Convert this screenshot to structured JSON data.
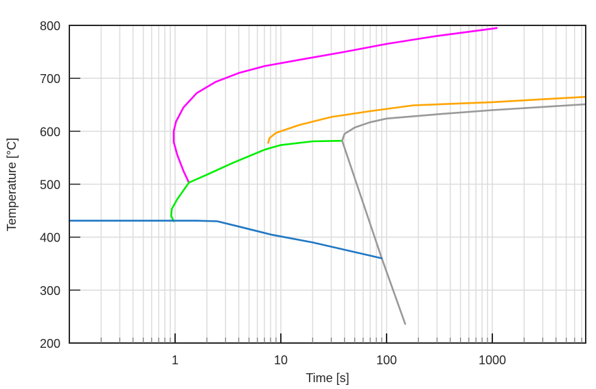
{
  "chart_data": {
    "type": "line",
    "title": "",
    "xlabel": "Time [s]",
    "ylabel": "Temperature [°C]",
    "xscale": "log",
    "xlim": [
      0.1,
      7600
    ],
    "ylim": [
      200,
      800
    ],
    "grid": true,
    "legend": "none",
    "x_tick_labels": [
      "1",
      "10",
      "100",
      "1000"
    ],
    "x_tick_values": [
      1,
      10,
      100,
      1000
    ],
    "y_tick_labels": [
      "200",
      "300",
      "400",
      "500",
      "600",
      "700",
      "800"
    ],
    "y_tick_values": [
      200,
      300,
      400,
      500,
      600,
      700,
      800
    ],
    "series": [
      {
        "name": "magenta",
        "color": "#ff00ff",
        "points": [
          [
            1.35,
            503
          ],
          [
            1.2,
            525
          ],
          [
            1.05,
            555
          ],
          [
            0.97,
            580
          ],
          [
            0.97,
            600
          ],
          [
            1.02,
            618
          ],
          [
            1.2,
            645
          ],
          [
            1.6,
            672
          ],
          [
            2.4,
            693
          ],
          [
            4,
            710
          ],
          [
            7,
            723
          ],
          [
            15,
            735
          ],
          [
            40,
            750
          ],
          [
            100,
            765
          ],
          [
            300,
            780
          ],
          [
            1100,
            795
          ]
        ]
      },
      {
        "name": "orange",
        "color": "#ffa500",
        "points": [
          [
            7.6,
            578
          ],
          [
            7.8,
            587
          ],
          [
            9,
            597
          ],
          [
            15,
            612
          ],
          [
            30,
            627
          ],
          [
            70,
            638
          ],
          [
            180,
            649
          ],
          [
            1000,
            655
          ],
          [
            7600,
            665
          ]
        ]
      },
      {
        "name": "green",
        "color": "#00ee00",
        "points": [
          [
            0.97,
            430
          ],
          [
            0.92,
            440
          ],
          [
            0.93,
            453
          ],
          [
            1.05,
            472
          ],
          [
            1.35,
            503
          ],
          [
            2,
            518
          ],
          [
            3.5,
            540
          ],
          [
            7,
            565
          ],
          [
            10,
            574
          ],
          [
            20,
            581
          ],
          [
            38,
            582
          ]
        ]
      },
      {
        "name": "gray",
        "color": "#999999",
        "points": [
          [
            38,
            582
          ],
          [
            40,
            595
          ],
          [
            50,
            607
          ],
          [
            70,
            617
          ],
          [
            100,
            624
          ],
          [
            300,
            632
          ],
          [
            1000,
            640
          ],
          [
            7600,
            651
          ],
          [
            38,
            582
          ],
          [
            90,
            360
          ],
          [
            150,
            236
          ]
        ]
      },
      {
        "name": "blue",
        "color": "#1f77c4",
        "points": [
          [
            0.1,
            431
          ],
          [
            1.6,
            431
          ],
          [
            2.5,
            430
          ],
          [
            4,
            420
          ],
          [
            8,
            405
          ],
          [
            20,
            390
          ],
          [
            90,
            360
          ]
        ]
      }
    ]
  }
}
